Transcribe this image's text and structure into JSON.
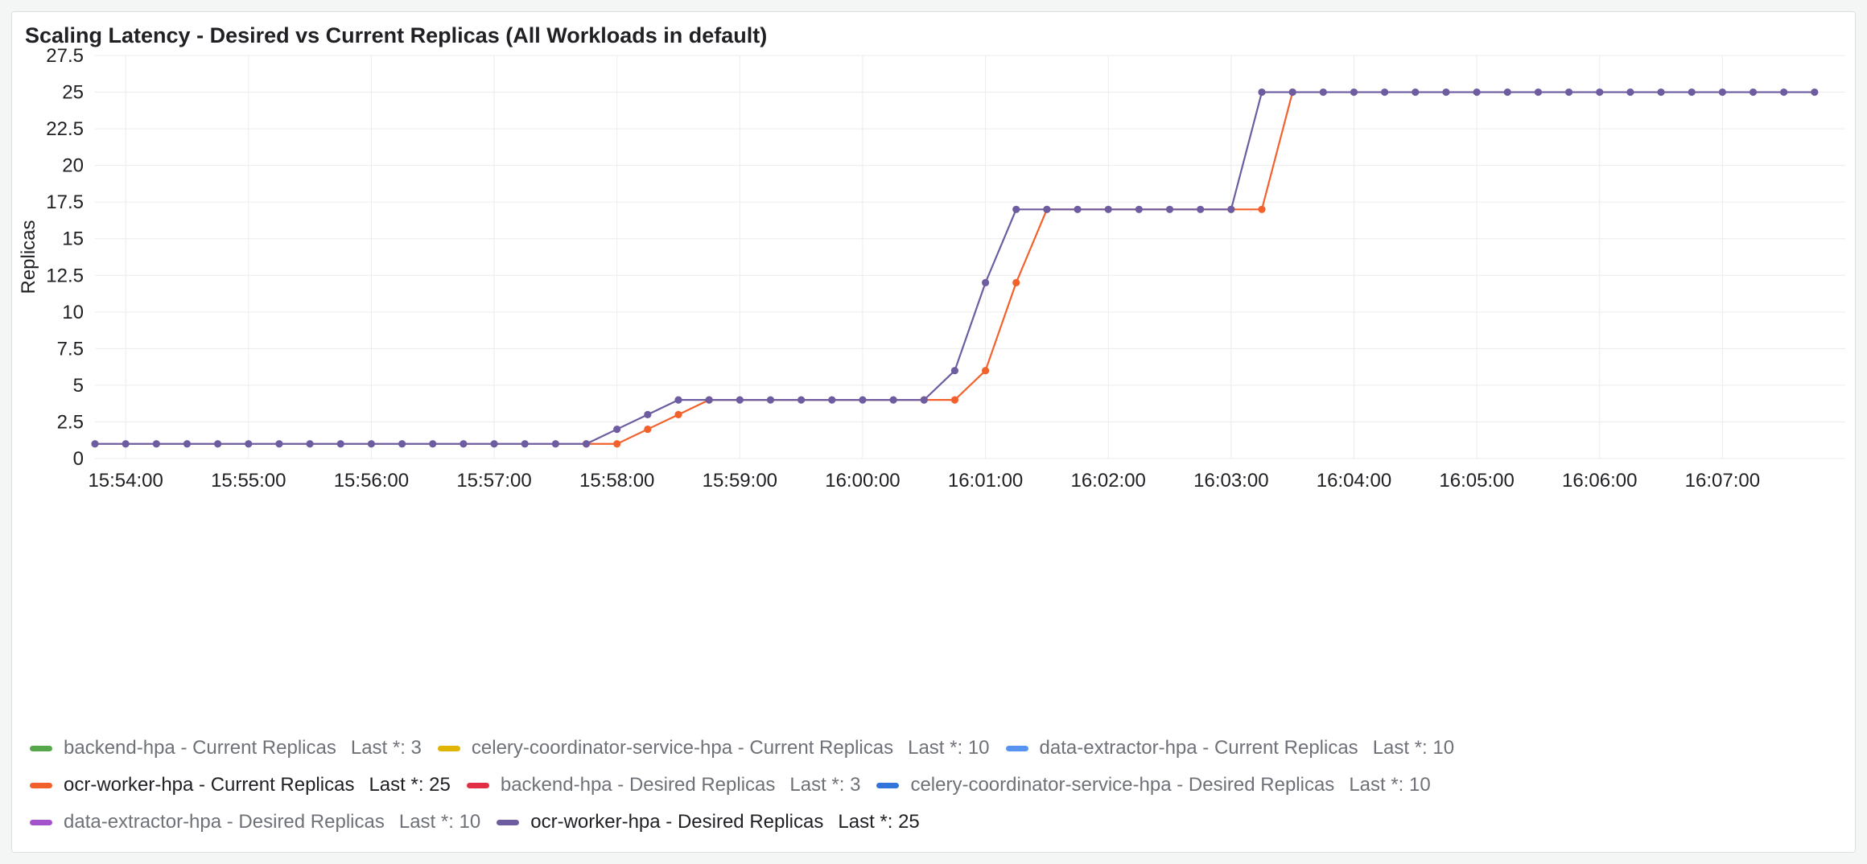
{
  "panel": {
    "title": "Scaling Latency - Desired vs Current Replicas (All Workloads in default)"
  },
  "chart_data": {
    "type": "line",
    "ylabel": "Replicas",
    "xlabel": "",
    "ylim": [
      0,
      27.5
    ],
    "y_ticks": [
      "0",
      "2.5",
      "5",
      "7.5",
      "10",
      "12.5",
      "15",
      "17.5",
      "20",
      "22.5",
      "25",
      "27.5"
    ],
    "x_tick_labels": [
      "15:54:00",
      "15:55:00",
      "15:56:00",
      "15:57:00",
      "15:58:00",
      "15:59:00",
      "16:00:00",
      "16:01:00",
      "16:02:00",
      "16:03:00",
      "16:04:00",
      "16:05:00",
      "16:06:00",
      "16:07:00"
    ],
    "xlim": [
      "15:53:45",
      "16:08:00"
    ],
    "grid": true,
    "legend_position": "bottom",
    "series": [
      {
        "name": "ocr-worker-hpa - Current Replicas",
        "color": "#f2612b",
        "x": [
          "15:57:45",
          "15:58:00",
          "15:58:15",
          "15:58:30",
          "15:58:45",
          "16:00:30",
          "16:00:45",
          "16:01:00",
          "16:01:15",
          "16:01:30",
          "16:03:00",
          "16:03:15",
          "16:03:30"
        ],
        "values": [
          1,
          1,
          2,
          3,
          4,
          4,
          4,
          6,
          12,
          17,
          17,
          17,
          25
        ]
      },
      {
        "name": "ocr-worker-hpa - Desired Replicas",
        "color": "#6d5c9f",
        "x": [
          "15:53:45",
          "15:54:00",
          "15:54:15",
          "15:54:30",
          "15:54:45",
          "15:55:00",
          "15:55:15",
          "15:55:30",
          "15:55:45",
          "15:56:00",
          "15:56:15",
          "15:56:30",
          "15:56:45",
          "15:57:00",
          "15:57:15",
          "15:57:30",
          "15:57:45",
          "15:58:00",
          "15:58:15",
          "15:58:30",
          "15:58:45",
          "15:59:00",
          "15:59:15",
          "15:59:30",
          "15:59:45",
          "16:00:00",
          "16:00:15",
          "16:00:30",
          "16:00:45",
          "16:01:00",
          "16:01:15",
          "16:01:30",
          "16:01:45",
          "16:02:00",
          "16:02:15",
          "16:02:30",
          "16:02:45",
          "16:03:00",
          "16:03:15",
          "16:03:30",
          "16:03:45",
          "16:04:00",
          "16:04:15",
          "16:04:30",
          "16:04:45",
          "16:05:00",
          "16:05:15",
          "16:05:30",
          "16:05:45",
          "16:06:00",
          "16:06:15",
          "16:06:30",
          "16:06:45",
          "16:07:00",
          "16:07:15",
          "16:07:30",
          "16:07:45"
        ],
        "values": [
          1,
          1,
          1,
          1,
          1,
          1,
          1,
          1,
          1,
          1,
          1,
          1,
          1,
          1,
          1,
          1,
          1,
          2,
          3,
          4,
          4,
          4,
          4,
          4,
          4,
          4,
          4,
          4,
          6,
          12,
          17,
          17,
          17,
          17,
          17,
          17,
          17,
          17,
          25,
          25,
          25,
          25,
          25,
          25,
          25,
          25,
          25,
          25,
          25,
          25,
          25,
          25,
          25,
          25,
          25,
          25,
          25
        ]
      }
    ]
  },
  "legend": {
    "rows": [
      [
        {
          "name": "backend-hpa - Current Replicas",
          "value": "Last *: 3",
          "color": "#56a64b",
          "active": false
        },
        {
          "name": "celery-coordinator-service-hpa - Current Replicas",
          "value": "Last *: 10",
          "color": "#e0b400",
          "active": false
        },
        {
          "name": "data-extractor-hpa - Current Replicas",
          "value": "Last *: 10",
          "color": "#5794f2",
          "active": false
        }
      ],
      [
        {
          "name": "ocr-worker-hpa - Current Replicas",
          "value": "Last *: 25",
          "color": "#f2612b",
          "active": true
        },
        {
          "name": "backend-hpa - Desired Replicas",
          "value": "Last *: 3",
          "color": "#e02f44",
          "active": false
        },
        {
          "name": "celery-coordinator-service-hpa - Desired Replicas",
          "value": "Last *: 10",
          "color": "#3274d9",
          "active": false
        }
      ],
      [
        {
          "name": "data-extractor-hpa - Desired Replicas",
          "value": "Last *: 10",
          "color": "#a352cc",
          "active": false
        },
        {
          "name": "ocr-worker-hpa - Desired Replicas",
          "value": "Last *: 25",
          "color": "#6d5c9f",
          "active": true
        }
      ]
    ]
  }
}
